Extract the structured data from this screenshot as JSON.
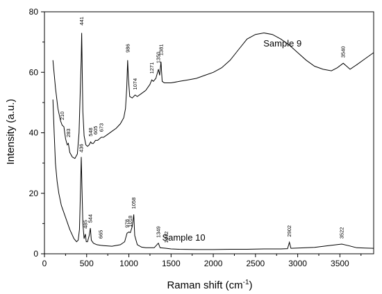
{
  "chart_data": {
    "type": "line",
    "xlabel": "Raman shift (cm",
    "xlabel_sup": "-1",
    "xlabel_end": ")",
    "ylabel": "Intensity (a.u.)",
    "xlim": [
      0,
      3900
    ],
    "ylim": [
      0,
      80
    ],
    "x_ticks": [
      0,
      500,
      1000,
      1500,
      2000,
      2500,
      3000,
      3500
    ],
    "y_ticks": [
      0,
      20,
      40,
      60,
      80
    ],
    "grid": false,
    "series": [
      {
        "name": "Sample 9",
        "label_pos": [
          2820,
          68.5
        ],
        "points": [
          [
            100,
            64
          ],
          [
            130,
            55
          ],
          [
            160,
            48
          ],
          [
            190,
            44
          ],
          [
            210,
            42.5
          ],
          [
            230,
            42
          ],
          [
            250,
            38
          ],
          [
            270,
            36
          ],
          [
            283,
            36.5
          ],
          [
            300,
            33.5
          ],
          [
            330,
            32
          ],
          [
            360,
            31.5
          ],
          [
            390,
            33
          ],
          [
            410,
            40
          ],
          [
            425,
            55
          ],
          [
            435,
            64
          ],
          [
            441,
            73
          ],
          [
            447,
            62
          ],
          [
            455,
            47
          ],
          [
            470,
            39
          ],
          [
            490,
            36
          ],
          [
            510,
            35.5
          ],
          [
            530,
            36
          ],
          [
            548,
            37
          ],
          [
            560,
            36.5
          ],
          [
            580,
            36.5
          ],
          [
            605,
            37.5
          ],
          [
            630,
            37.5
          ],
          [
            673,
            38.5
          ],
          [
            700,
            38.5
          ],
          [
            750,
            39.5
          ],
          [
            800,
            40.5
          ],
          [
            850,
            41.5
          ],
          [
            900,
            43
          ],
          [
            940,
            45
          ],
          [
            960,
            48
          ],
          [
            975,
            55
          ],
          [
            986,
            64
          ],
          [
            995,
            58
          ],
          [
            1010,
            52
          ],
          [
            1040,
            51.5
          ],
          [
            1074,
            52.5
          ],
          [
            1100,
            52
          ],
          [
            1150,
            53
          ],
          [
            1200,
            54
          ],
          [
            1250,
            56
          ],
          [
            1271,
            57.5
          ],
          [
            1290,
            57
          ],
          [
            1320,
            58
          ],
          [
            1350,
            61
          ],
          [
            1365,
            59
          ],
          [
            1381,
            63.5
          ],
          [
            1395,
            57
          ],
          [
            1420,
            56.5
          ],
          [
            1460,
            56.5
          ],
          [
            1500,
            56.5
          ],
          [
            1600,
            57
          ],
          [
            1700,
            57.5
          ],
          [
            1800,
            58
          ],
          [
            1900,
            59
          ],
          [
            2000,
            60
          ],
          [
            2100,
            61.5
          ],
          [
            2200,
            64
          ],
          [
            2300,
            67.5
          ],
          [
            2400,
            71
          ],
          [
            2500,
            72.5
          ],
          [
            2600,
            73
          ],
          [
            2700,
            72.5
          ],
          [
            2800,
            71
          ],
          [
            2900,
            69
          ],
          [
            3000,
            66.5
          ],
          [
            3100,
            64
          ],
          [
            3200,
            62
          ],
          [
            3300,
            61
          ],
          [
            3400,
            60.5
          ],
          [
            3470,
            61.5
          ],
          [
            3540,
            63
          ],
          [
            3580,
            62
          ],
          [
            3620,
            61
          ],
          [
            3700,
            62.5
          ],
          [
            3800,
            64.5
          ],
          [
            3900,
            66.5
          ]
        ]
      },
      {
        "name": "Sample 10",
        "label_pos": [
          1650,
          4.4
        ],
        "points": [
          [
            100,
            51
          ],
          [
            115,
            40
          ],
          [
            130,
            30
          ],
          [
            150,
            24
          ],
          [
            170,
            20
          ],
          [
            200,
            16
          ],
          [
            250,
            12
          ],
          [
            300,
            8
          ],
          [
            350,
            5
          ],
          [
            380,
            4
          ],
          [
            400,
            4.5
          ],
          [
            415,
            8
          ],
          [
            428,
            22
          ],
          [
            436,
            32
          ],
          [
            444,
            22
          ],
          [
            455,
            10
          ],
          [
            470,
            5
          ],
          [
            485,
            6.5
          ],
          [
            495,
            4
          ],
          [
            510,
            4
          ],
          [
            530,
            6
          ],
          [
            544,
            8.5
          ],
          [
            555,
            4.5
          ],
          [
            580,
            3.5
          ],
          [
            620,
            3
          ],
          [
            665,
            2.8
          ],
          [
            700,
            2.7
          ],
          [
            800,
            2.5
          ],
          [
            900,
            3
          ],
          [
            950,
            4
          ],
          [
            978,
            6.8
          ],
          [
            1000,
            7.2
          ],
          [
            1018,
            7
          ],
          [
            1040,
            9
          ],
          [
            1058,
            13
          ],
          [
            1070,
            6
          ],
          [
            1100,
            3
          ],
          [
            1150,
            2.2
          ],
          [
            1200,
            2
          ],
          [
            1300,
            2
          ],
          [
            1349,
            3.5
          ],
          [
            1370,
            2
          ],
          [
            1442,
            1.8
          ],
          [
            1500,
            1.6
          ],
          [
            1600,
            1.5
          ],
          [
            1800,
            1.4
          ],
          [
            2000,
            1.4
          ],
          [
            2200,
            1.5
          ],
          [
            2400,
            1.5
          ],
          [
            2600,
            1.6
          ],
          [
            2800,
            1.6
          ],
          [
            2880,
            1.7
          ],
          [
            2902,
            3.8
          ],
          [
            2920,
            1.8
          ],
          [
            3000,
            1.9
          ],
          [
            3200,
            2.1
          ],
          [
            3400,
            2.8
          ],
          [
            3522,
            3.2
          ],
          [
            3600,
            2.7
          ],
          [
            3700,
            2
          ],
          [
            3800,
            1.9
          ],
          [
            3900,
            1.8
          ]
        ]
      }
    ],
    "annotations": [
      {
        "text": "441",
        "x": 441,
        "y": 75.5
      },
      {
        "text": "986",
        "x": 986,
        "y": 66.5
      },
      {
        "text": "1074",
        "x": 1074,
        "y": 54.2
      },
      {
        "text": "1271",
        "x": 1271,
        "y": 59.5
      },
      {
        "text": "1350",
        "x": 1350,
        "y": 63
      },
      {
        "text": "1381",
        "x": 1381,
        "y": 65.5
      },
      {
        "text": "3540",
        "x": 3540,
        "y": 64.8
      },
      {
        "text": "210",
        "x": 210,
        "y": 44.2
      },
      {
        "text": "283",
        "x": 283,
        "y": 38.5
      },
      {
        "text": "548",
        "x": 548,
        "y": 38.8
      },
      {
        "text": "605",
        "x": 605,
        "y": 39.4
      },
      {
        "text": "673",
        "x": 673,
        "y": 40.3
      },
      {
        "text": "436",
        "x": 436,
        "y": 33.5
      },
      {
        "text": "485",
        "x": 485,
        "y": 8.3
      },
      {
        "text": "544",
        "x": 544,
        "y": 10.2
      },
      {
        "text": "665",
        "x": 665,
        "y": 5
      },
      {
        "text": "978",
        "x": 978,
        "y": 8.6
      },
      {
        "text": "1018",
        "x": 1018,
        "y": 8.8
      },
      {
        "text": "1058",
        "x": 1058,
        "y": 14.8
      },
      {
        "text": "1349",
        "x": 1349,
        "y": 5.3
      },
      {
        "text": "1442",
        "x": 1442,
        "y": 3.6
      },
      {
        "text": "2902",
        "x": 2902,
        "y": 5.6
      },
      {
        "text": "3522",
        "x": 3522,
        "y": 5
      }
    ]
  }
}
